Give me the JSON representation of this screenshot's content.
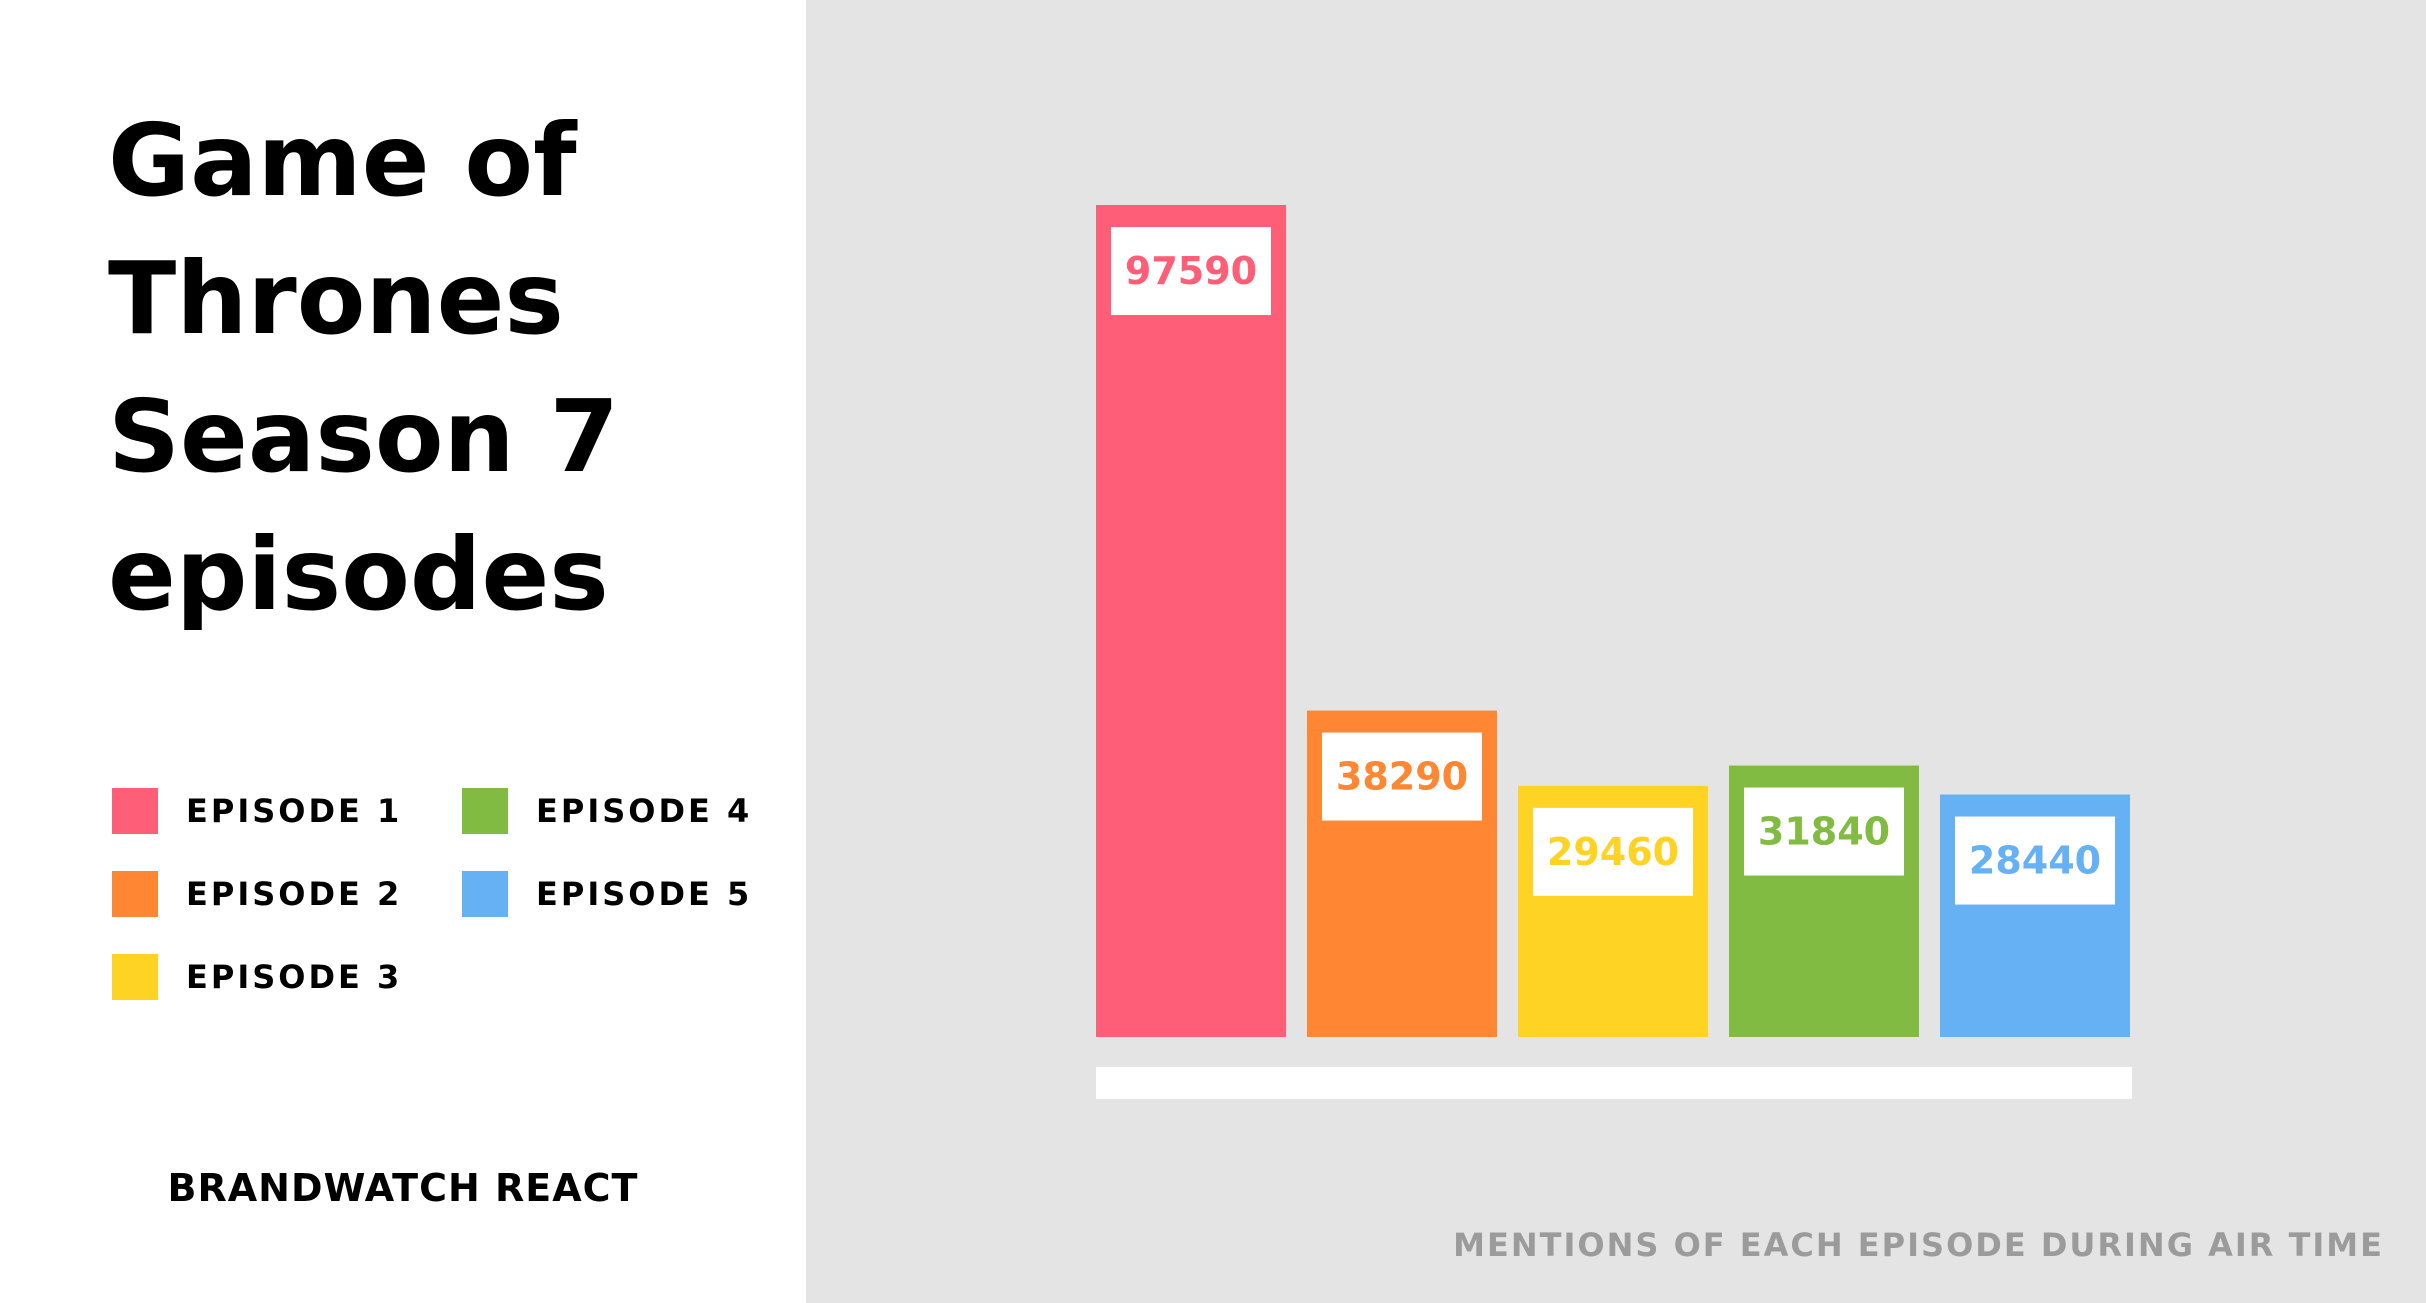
{
  "title": "Game of Thrones Season 7 episodes",
  "brand": "BRANDWATCH REACT",
  "caption": "MENTIONS OF EACH EPISODE DURING AIR TIME",
  "chart_data": {
    "type": "bar",
    "title": "Game of Thrones Season 7 episodes",
    "subtitle": "MENTIONS OF EACH EPISODE DURING AIR TIME",
    "xlabel": "",
    "ylabel": "",
    "categories": [
      "EPISODE 1",
      "EPISODE 2",
      "EPISODE 3",
      "EPISODE 4",
      "EPISODE 5"
    ],
    "values": [
      97590,
      38290,
      29460,
      31840,
      28440
    ],
    "colors": [
      "#ff5e78",
      "#ff8733",
      "#ffd324",
      "#82bb42",
      "#66b0f4"
    ],
    "ylim": [
      0,
      97590
    ],
    "grid": false,
    "legend_position": "left",
    "data_labels": true
  },
  "legend": [
    {
      "label": "EPISODE 1",
      "color": "#ff5e78"
    },
    {
      "label": "EPISODE 2",
      "color": "#ff8733"
    },
    {
      "label": "EPISODE 3",
      "color": "#ffd324"
    },
    {
      "label": "EPISODE 4",
      "color": "#82bb42"
    },
    {
      "label": "EPISODE 5",
      "color": "#66b0f4"
    }
  ]
}
